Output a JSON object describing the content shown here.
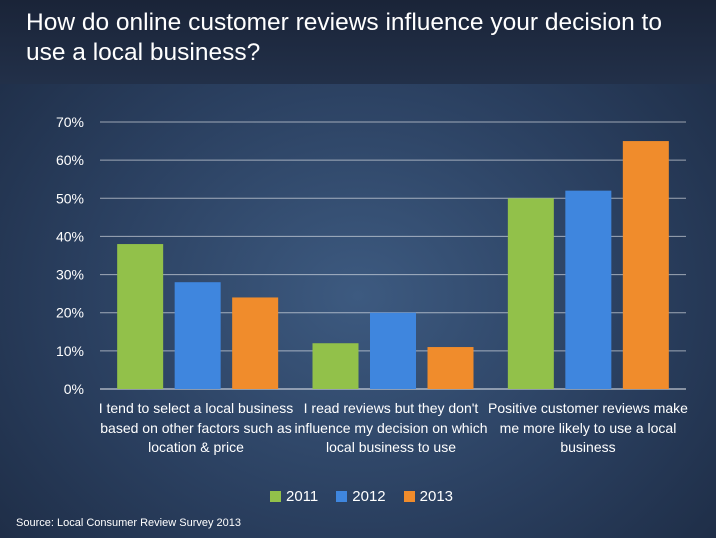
{
  "title": "How do online customer reviews influence your decision to use a local business?",
  "source": "Source: Local Consumer Review Survey 2013",
  "chart_data": {
    "type": "bar",
    "categories": [
      "I tend to select a local business based on other factors such as location & price",
      "I read reviews but they don't influence my decision on which local business to use",
      "Positive customer reviews make me more likely to use a local business"
    ],
    "series": [
      {
        "name": "2011",
        "color": "#92c14a",
        "values": [
          38,
          12,
          50
        ]
      },
      {
        "name": "2012",
        "color": "#3f86de",
        "values": [
          28,
          20,
          52
        ]
      },
      {
        "name": "2013",
        "color": "#f08c2c",
        "values": [
          24,
          11,
          65
        ]
      }
    ],
    "ylim": [
      0,
      70
    ],
    "yticks": [
      "0%",
      "10%",
      "20%",
      "30%",
      "40%",
      "50%",
      "60%",
      "70%"
    ],
    "grid": true,
    "legend": "bottom"
  }
}
